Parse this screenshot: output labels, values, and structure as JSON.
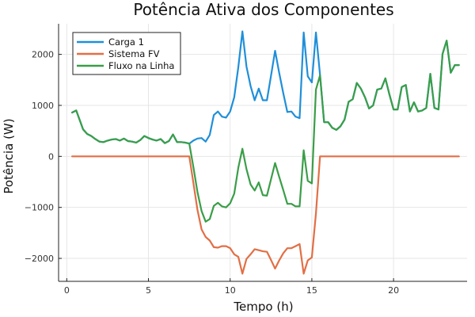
{
  "chart_data": {
    "type": "line",
    "title": "Potência Ativa dos Componentes",
    "xlabel": "Tempo (h)",
    "ylabel": "Potência (W)",
    "xlim": [
      -0.5,
      24.5
    ],
    "ylim": [
      -2450,
      2600
    ],
    "xticks": [
      0,
      5,
      10,
      15,
      20
    ],
    "yticks": [
      -2000,
      -1000,
      0,
      1000,
      2000
    ],
    "grid": true,
    "legend_position": "top-left",
    "series": [
      {
        "name": "Carga 1",
        "color": "#1f8fd9",
        "x": [
          0.33,
          0.58,
          1.0,
          1.25,
          1.5,
          1.75,
          2.0,
          2.25,
          2.5,
          2.75,
          3.0,
          3.25,
          3.5,
          3.75,
          4.0,
          4.25,
          4.5,
          4.75,
          5.0,
          5.25,
          5.5,
          5.75,
          6.0,
          6.25,
          6.5,
          6.75,
          7.0,
          7.25,
          7.5,
          7.75,
          8.0,
          8.25,
          8.5,
          8.75,
          9.0,
          9.25,
          9.5,
          9.75,
          10.0,
          10.25,
          10.5,
          10.75,
          11.0,
          11.25,
          11.5,
          11.75,
          12.0,
          12.25,
          12.5,
          12.75,
          13.0,
          13.25,
          13.5,
          13.75,
          14.0,
          14.25,
          14.5,
          14.75,
          15.0,
          15.25,
          15.5,
          15.75,
          16.0,
          16.25,
          16.5,
          16.75,
          17.0,
          17.25,
          17.5,
          17.75,
          18.0,
          18.25,
          18.5,
          18.75,
          19.0,
          19.25,
          19.5,
          19.75,
          20.0,
          20.25,
          20.5,
          20.75,
          21.0,
          21.25,
          21.5,
          21.75,
          22.0,
          22.25,
          22.5,
          22.75,
          23.0,
          23.25,
          23.5,
          23.75,
          24.0
        ],
        "y": [
          860,
          900,
          530,
          440,
          400,
          340,
          290,
          280,
          310,
          330,
          340,
          310,
          350,
          300,
          290,
          270,
          320,
          400,
          360,
          330,
          310,
          340,
          260,
          300,
          430,
          280,
          280,
          270,
          250,
          310,
          350,
          360,
          290,
          420,
          810,
          880,
          780,
          760,
          880,
          1160,
          1750,
          2450,
          1760,
          1380,
          1100,
          1330,
          1100,
          1100,
          1580,
          2070,
          1640,
          1240,
          870,
          880,
          780,
          750,
          2430,
          1570,
          1450,
          2430,
          1600,
          670,
          670,
          560,
          520,
          590,
          720,
          1070,
          1120,
          1440,
          1330,
          1160,
          940,
          1000,
          1310,
          1330,
          1530,
          1210,
          920,
          920,
          1360,
          1400,
          880,
          1060,
          880,
          900,
          950,
          1620,
          950,
          920,
          2010,
          2270,
          1640,
          1790,
          1790
        ]
      },
      {
        "name": "Sistema FV",
        "color": "#e26f46",
        "x": [
          0.33,
          7.5,
          7.75,
          8.0,
          8.25,
          8.5,
          8.75,
          9.0,
          9.25,
          9.5,
          9.75,
          10.0,
          10.25,
          10.5,
          10.75,
          11.0,
          11.25,
          11.5,
          11.75,
          12.0,
          12.25,
          12.5,
          12.75,
          13.0,
          13.25,
          13.5,
          13.75,
          14.0,
          14.25,
          14.5,
          14.75,
          15.0,
          15.25,
          15.5,
          24.0
        ],
        "y": [
          0,
          0,
          -520,
          -1050,
          -1430,
          -1580,
          -1650,
          -1780,
          -1790,
          -1760,
          -1760,
          -1800,
          -1920,
          -1970,
          -2300,
          -2010,
          -1920,
          -1820,
          -1840,
          -1860,
          -1870,
          -2030,
          -2200,
          -2040,
          -1900,
          -1800,
          -1800,
          -1760,
          -1720,
          -2300,
          -2040,
          -1980,
          -1120,
          0,
          0
        ]
      },
      {
        "name": "Fluxo na Linha",
        "color": "#3a9e48",
        "x": [
          0.33,
          0.58,
          1.0,
          1.25,
          1.5,
          1.75,
          2.0,
          2.25,
          2.5,
          2.75,
          3.0,
          3.25,
          3.5,
          3.75,
          4.0,
          4.25,
          4.5,
          4.75,
          5.0,
          5.25,
          5.5,
          5.75,
          6.0,
          6.25,
          6.5,
          6.75,
          7.0,
          7.25,
          7.5,
          7.75,
          8.0,
          8.25,
          8.5,
          8.75,
          9.0,
          9.25,
          9.5,
          9.75,
          10.0,
          10.25,
          10.5,
          10.75,
          11.0,
          11.25,
          11.5,
          11.75,
          12.0,
          12.25,
          12.5,
          12.75,
          13.0,
          13.25,
          13.5,
          13.75,
          14.0,
          14.25,
          14.5,
          14.75,
          15.0,
          15.25,
          15.5,
          15.75,
          16.0,
          16.25,
          16.5,
          16.75,
          17.0,
          17.25,
          17.5,
          17.75,
          18.0,
          18.25,
          18.5,
          18.75,
          19.0,
          19.25,
          19.5,
          19.75,
          20.0,
          20.25,
          20.5,
          20.75,
          21.0,
          21.25,
          21.5,
          21.75,
          22.0,
          22.25,
          22.5,
          22.75,
          23.0,
          23.25,
          23.5,
          23.75,
          24.0
        ],
        "y": [
          860,
          900,
          530,
          440,
          400,
          340,
          290,
          280,
          310,
          330,
          340,
          310,
          350,
          300,
          290,
          270,
          320,
          400,
          360,
          330,
          310,
          340,
          260,
          300,
          430,
          280,
          280,
          270,
          250,
          -210,
          -700,
          -1070,
          -1280,
          -1230,
          -970,
          -910,
          -980,
          -1000,
          -920,
          -730,
          -220,
          150,
          -250,
          -550,
          -670,
          -510,
          -760,
          -770,
          -450,
          -130,
          -400,
          -660,
          -930,
          -930,
          -980,
          -980,
          120,
          -480,
          -530,
          1310,
          1590,
          670,
          670,
          560,
          520,
          590,
          720,
          1070,
          1120,
          1440,
          1330,
          1160,
          940,
          1000,
          1310,
          1330,
          1530,
          1210,
          920,
          920,
          1360,
          1400,
          880,
          1060,
          880,
          900,
          950,
          1620,
          950,
          920,
          2010,
          2270,
          1640,
          1790,
          1790
        ]
      }
    ]
  }
}
